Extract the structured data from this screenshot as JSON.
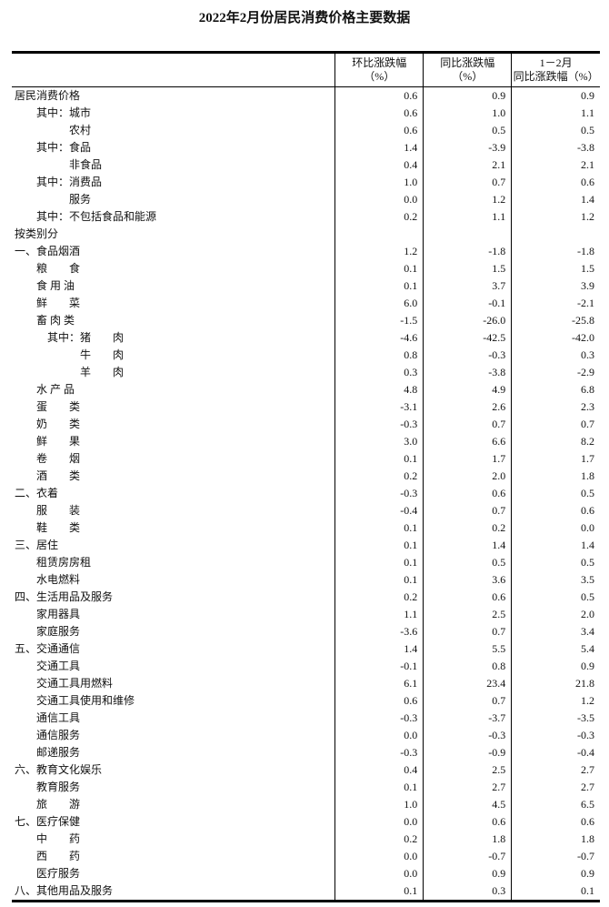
{
  "title": "2022年2月份居民消费价格主要数据",
  "headers": {
    "mom": [
      "环比涨跌幅",
      "（%）"
    ],
    "yoy": [
      "同比涨跌幅",
      "（%）"
    ],
    "ytd": [
      "1－2月",
      "同比涨跌幅（%）"
    ]
  },
  "rows": [
    {
      "label": "居民消费价格",
      "level": 0,
      "mom": "0.6",
      "yoy": "0.9",
      "ytd": "0.9"
    },
    {
      "label": "其中：城市",
      "level": 1,
      "mom": "0.6",
      "yoy": "1.0",
      "ytd": "1.1"
    },
    {
      "label": "农村",
      "level": 2,
      "mom": "0.6",
      "yoy": "0.5",
      "ytd": "0.5"
    },
    {
      "label": "其中：食品",
      "level": 1,
      "mom": "1.4",
      "yoy": "-3.9",
      "ytd": "-3.8"
    },
    {
      "label": "非食品",
      "level": 2,
      "mom": "0.4",
      "yoy": "2.1",
      "ytd": "2.1"
    },
    {
      "label": "其中：消费品",
      "level": 1,
      "mom": "1.0",
      "yoy": "0.7",
      "ytd": "0.6"
    },
    {
      "label": "服务",
      "level": 2,
      "mom": "0.0",
      "yoy": "1.2",
      "ytd": "1.4"
    },
    {
      "label": "其中：不包括食品和能源",
      "level": 1,
      "mom": "0.2",
      "yoy": "1.1",
      "ytd": "1.2"
    },
    {
      "label": "按类别分",
      "level": 0,
      "mom": "",
      "yoy": "",
      "ytd": ""
    },
    {
      "label": "一、食品烟酒",
      "level": 0,
      "mom": "1.2",
      "yoy": "-1.8",
      "ytd": "-1.8"
    },
    {
      "label": "粮　　食",
      "level": 1,
      "mom": "0.1",
      "yoy": "1.5",
      "ytd": "1.5"
    },
    {
      "label": "食 用 油",
      "level": 1,
      "mom": "0.1",
      "yoy": "3.7",
      "ytd": "3.9"
    },
    {
      "label": "鲜　　菜",
      "level": 1,
      "mom": "6.0",
      "yoy": "-0.1",
      "ytd": "-2.1"
    },
    {
      "label": "畜 肉 类",
      "level": 1,
      "mom": "-1.5",
      "yoy": "-26.0",
      "ytd": "-25.8"
    },
    {
      "label": "其中：猪　　肉",
      "level": 3,
      "mom": "-4.6",
      "yoy": "-42.5",
      "ytd": "-42.0"
    },
    {
      "label": "牛　　肉",
      "level": 4,
      "mom": "0.8",
      "yoy": "-0.3",
      "ytd": "0.3"
    },
    {
      "label": "羊　　肉",
      "level": 4,
      "mom": "0.3",
      "yoy": "-3.8",
      "ytd": "-2.9"
    },
    {
      "label": "水 产 品",
      "level": 1,
      "mom": "4.8",
      "yoy": "4.9",
      "ytd": "6.8"
    },
    {
      "label": "蛋　　类",
      "level": 1,
      "mom": "-3.1",
      "yoy": "2.6",
      "ytd": "2.3"
    },
    {
      "label": "奶　　类",
      "level": 1,
      "mom": "-0.3",
      "yoy": "0.7",
      "ytd": "0.7"
    },
    {
      "label": "鲜　　果",
      "level": 1,
      "mom": "3.0",
      "yoy": "6.6",
      "ytd": "8.2"
    },
    {
      "label": "卷　　烟",
      "level": 1,
      "mom": "0.1",
      "yoy": "1.7",
      "ytd": "1.7"
    },
    {
      "label": "酒　　类",
      "level": 1,
      "mom": "0.2",
      "yoy": "2.0",
      "ytd": "1.8"
    },
    {
      "label": "二、衣着",
      "level": 0,
      "mom": "-0.3",
      "yoy": "0.6",
      "ytd": "0.5"
    },
    {
      "label": "服　　装",
      "level": 1,
      "mom": "-0.4",
      "yoy": "0.7",
      "ytd": "0.6"
    },
    {
      "label": "鞋　　类",
      "level": 1,
      "mom": "0.1",
      "yoy": "0.2",
      "ytd": "0.0"
    },
    {
      "label": "三、居住",
      "level": 0,
      "mom": "0.1",
      "yoy": "1.4",
      "ytd": "1.4"
    },
    {
      "label": "租赁房房租",
      "level": 1,
      "mom": "0.1",
      "yoy": "0.5",
      "ytd": "0.5"
    },
    {
      "label": "水电燃料",
      "level": 1,
      "mom": "0.1",
      "yoy": "3.6",
      "ytd": "3.5"
    },
    {
      "label": "四、生活用品及服务",
      "level": 0,
      "mom": "0.2",
      "yoy": "0.6",
      "ytd": "0.5"
    },
    {
      "label": "家用器具",
      "level": 1,
      "mom": "1.1",
      "yoy": "2.5",
      "ytd": "2.0"
    },
    {
      "label": "家庭服务",
      "level": 1,
      "mom": "-3.6",
      "yoy": "0.7",
      "ytd": "3.4"
    },
    {
      "label": "五、交通通信",
      "level": 0,
      "mom": "1.4",
      "yoy": "5.5",
      "ytd": "5.4"
    },
    {
      "label": "交通工具",
      "level": 1,
      "mom": "-0.1",
      "yoy": "0.8",
      "ytd": "0.9"
    },
    {
      "label": "交通工具用燃料",
      "level": 1,
      "mom": "6.1",
      "yoy": "23.4",
      "ytd": "21.8"
    },
    {
      "label": "交通工具使用和维修",
      "level": 1,
      "mom": "0.6",
      "yoy": "0.7",
      "ytd": "1.2"
    },
    {
      "label": "通信工具",
      "level": 1,
      "mom": "-0.3",
      "yoy": "-3.7",
      "ytd": "-3.5"
    },
    {
      "label": "通信服务",
      "level": 1,
      "mom": "0.0",
      "yoy": "-0.3",
      "ytd": "-0.3"
    },
    {
      "label": "邮递服务",
      "level": 1,
      "mom": "-0.3",
      "yoy": "-0.9",
      "ytd": "-0.4"
    },
    {
      "label": "六、教育文化娱乐",
      "level": 0,
      "mom": "0.4",
      "yoy": "2.5",
      "ytd": "2.7"
    },
    {
      "label": "教育服务",
      "level": 1,
      "mom": "0.1",
      "yoy": "2.7",
      "ytd": "2.7"
    },
    {
      "label": "旅　　游",
      "level": 1,
      "mom": "1.0",
      "yoy": "4.5",
      "ytd": "6.5"
    },
    {
      "label": "七、医疗保健",
      "level": 0,
      "mom": "0.0",
      "yoy": "0.6",
      "ytd": "0.6"
    },
    {
      "label": "中　　药",
      "level": 1,
      "mom": "0.2",
      "yoy": "1.8",
      "ytd": "1.8"
    },
    {
      "label": "西　　药",
      "level": 1,
      "mom": "0.0",
      "yoy": "-0.7",
      "ytd": "-0.7"
    },
    {
      "label": "医疗服务",
      "level": 1,
      "mom": "0.0",
      "yoy": "0.9",
      "ytd": "0.9"
    },
    {
      "label": "八、其他用品及服务",
      "level": 0,
      "mom": "0.1",
      "yoy": "0.3",
      "ytd": "0.1"
    }
  ]
}
